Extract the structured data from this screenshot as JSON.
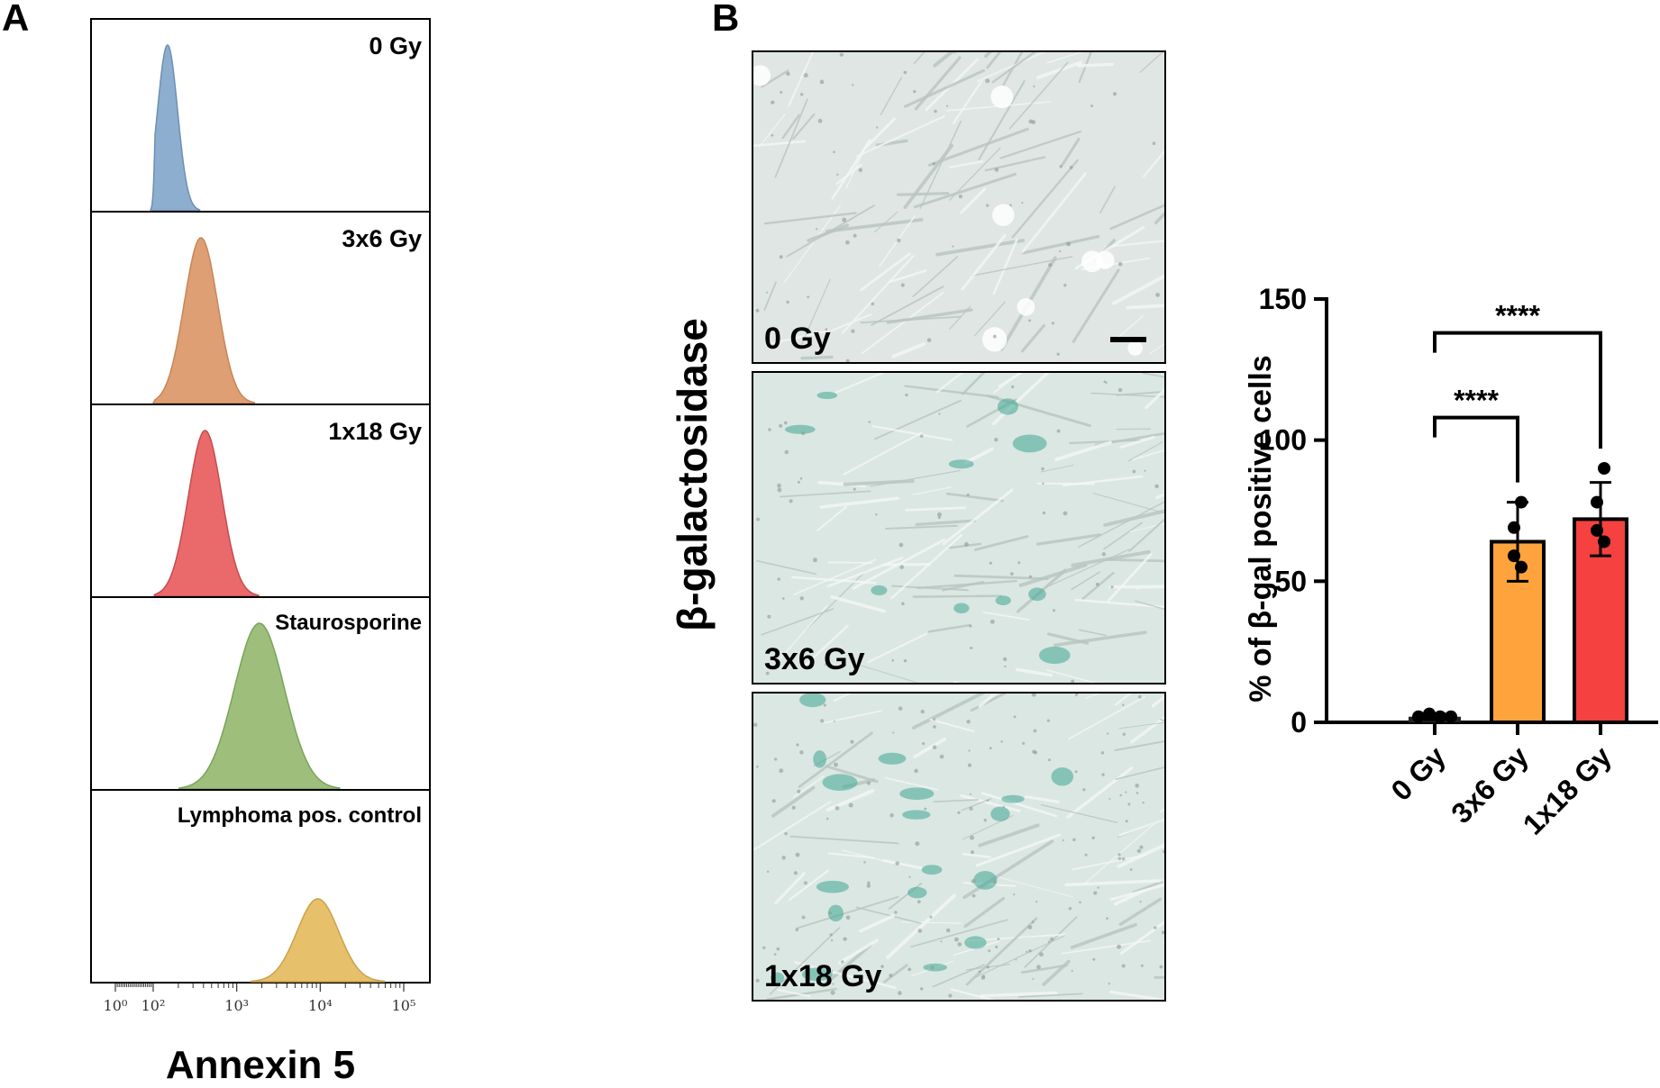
{
  "panel_a": {
    "letter": "A",
    "histograms": [
      {
        "label": "0 Gy",
        "color": "#8eaecf",
        "stroke": "#6d8fb3",
        "peak_log": 2.15,
        "width": 0.12
      },
      {
        "label": "3x6 Gy",
        "color": "#dd9f73",
        "stroke": "#c98557",
        "peak_log": 2.55,
        "width": 0.2
      },
      {
        "label": "1x18 Gy",
        "color": "#ea6a6c",
        "stroke": "#c54c4f",
        "peak_log": 2.6,
        "width": 0.2
      },
      {
        "label": "Staurosporine",
        "color": "#9ebf7c",
        "stroke": "#7aa35a",
        "peak_log": 3.25,
        "width": 0.3
      },
      {
        "label": "Lymphoma pos. control",
        "color": "#e6c06a",
        "stroke": "#c9a24a",
        "peak_log": 3.95,
        "width": 0.25
      }
    ],
    "x_ticks": [
      "10⁰",
      "10²",
      "10³",
      "10⁴",
      "10⁵"
    ],
    "x_axis_label": "Annexin 5"
  },
  "panel_b": {
    "letter": "B",
    "stain_label": "β-galactosidase",
    "images": [
      {
        "label": "0 Gy",
        "stain_spots": 0
      },
      {
        "label": "3x6 Gy",
        "stain_spots": 10
      },
      {
        "label": "1x18 Gy",
        "stain_spots": 18
      }
    ]
  },
  "chart_data": {
    "type": "bar",
    "categories": [
      "0 Gy",
      "3x6 Gy",
      "1x18 Gy"
    ],
    "values": [
      2,
      64,
      72
    ],
    "error": [
      1,
      14,
      13
    ],
    "points": [
      [
        2,
        3,
        2,
        2
      ],
      [
        78,
        69,
        55,
        59
      ],
      [
        90,
        78,
        64,
        68
      ]
    ],
    "colors": [
      "#222222",
      "#ffa43d",
      "#f5413f"
    ],
    "ylabel": "% of β-gal positive cells",
    "ylim": [
      0,
      150
    ],
    "yticks": [
      0,
      50,
      100,
      150
    ],
    "significance": [
      {
        "from": "0 Gy",
        "to": "3x6 Gy",
        "label": "****"
      },
      {
        "from": "0 Gy",
        "to": "1x18 Gy",
        "label": "****"
      }
    ]
  }
}
